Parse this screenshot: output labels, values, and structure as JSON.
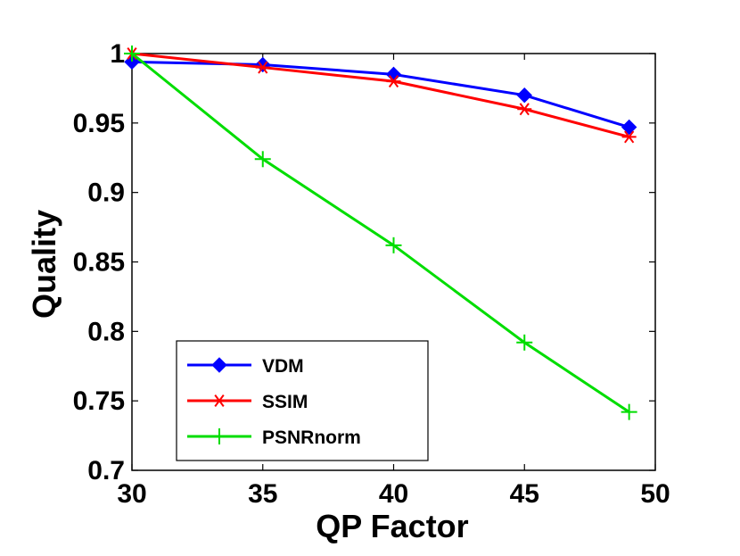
{
  "chart_data": {
    "type": "line",
    "title": "",
    "xlabel": "QP Factor",
    "ylabel": "Quality",
    "xlim": [
      30,
      50
    ],
    "ylim": [
      0.7,
      1.0
    ],
    "xticks": [
      "30",
      "35",
      "40",
      "45",
      "50"
    ],
    "yticks": [
      "0.7",
      "0.75",
      "0.8",
      "0.85",
      "0.9",
      "0.95",
      "1"
    ],
    "x": [
      30,
      35,
      40,
      45,
      49
    ],
    "grid": false,
    "legend_position": "bottom-left",
    "series": [
      {
        "name": "VDM",
        "color": "#0000ff",
        "marker": "diamond",
        "values": [
          0.994,
          0.992,
          0.985,
          0.97,
          0.947
        ]
      },
      {
        "name": "SSIM",
        "color": "#ff0000",
        "marker": "asterisk",
        "values": [
          1.0,
          0.99,
          0.98,
          0.96,
          0.94
        ]
      },
      {
        "name": "PSNRnorm",
        "color": "#00dd00",
        "marker": "plus",
        "values": [
          1.0,
          0.924,
          0.862,
          0.792,
          0.742
        ]
      }
    ]
  }
}
